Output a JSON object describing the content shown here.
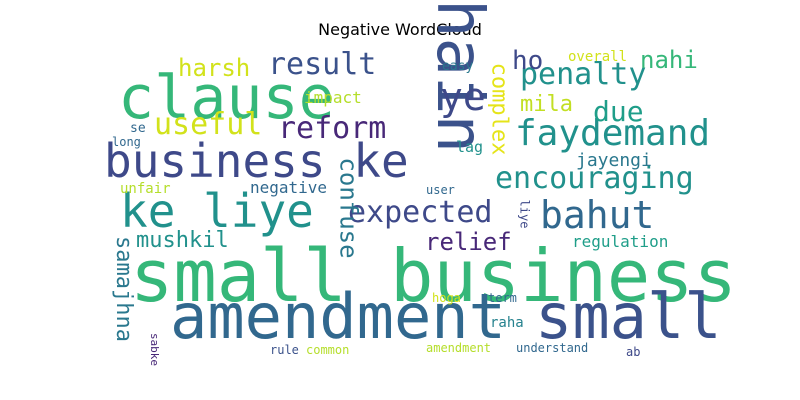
{
  "title": "Negative WordCloud",
  "words": [
    {
      "text": "small business",
      "color": "#35b779"
    },
    {
      "text": "amendment",
      "color": "#31688e"
    },
    {
      "text": "small",
      "color": "#3b528b"
    },
    {
      "text": "clause",
      "color": "#35b779"
    },
    {
      "text": "hain",
      "color": "#3b528b"
    },
    {
      "text": "business ke",
      "color": "#3e4989"
    },
    {
      "text": "ke liye",
      "color": "#21918c"
    },
    {
      "text": "faydemand",
      "color": "#21918c"
    },
    {
      "text": "bahut",
      "color": "#31688e"
    },
    {
      "text": "penalty",
      "color": "#21918c"
    },
    {
      "text": "result",
      "color": "#3b528b"
    },
    {
      "text": "reform",
      "color": "#482878"
    },
    {
      "text": "useful",
      "color": "#d2e21b"
    },
    {
      "text": "ye",
      "color": "#3e4989"
    },
    {
      "text": "expected",
      "color": "#3e4989"
    },
    {
      "text": "encouraging",
      "color": "#21918c"
    },
    {
      "text": "due",
      "color": "#1f9e89"
    },
    {
      "text": "harsh",
      "color": "#d2e21b"
    },
    {
      "text": "ho",
      "color": "#3e4989"
    },
    {
      "text": "nahi",
      "color": "#35b779"
    },
    {
      "text": "mila",
      "color": "#c2df23"
    },
    {
      "text": "complex",
      "color": "#e5e419"
    },
    {
      "text": "confuse",
      "color": "#2a788e"
    },
    {
      "text": "relief",
      "color": "#482878"
    },
    {
      "text": "mushkil",
      "color": "#21918c"
    },
    {
      "text": "samajhna",
      "color": "#2a788e"
    },
    {
      "text": "jayengi",
      "color": "#2a788e"
    },
    {
      "text": "negative",
      "color": "#31688e"
    },
    {
      "text": "regulation",
      "color": "#1f9e89"
    },
    {
      "text": "impact",
      "color": "#b5de2b"
    },
    {
      "text": "overall",
      "color": "#d2e21b"
    },
    {
      "text": "easy",
      "color": "#2a788e"
    },
    {
      "text": "se",
      "color": "#31688e"
    },
    {
      "text": "long",
      "color": "#31688e"
    },
    {
      "text": "lag",
      "color": "#21918c"
    },
    {
      "text": "unfair",
      "color": "#b5de2b"
    },
    {
      "text": "user",
      "color": "#31688e"
    },
    {
      "text": "liye",
      "color": "#3e4989"
    },
    {
      "text": "raha",
      "color": "#26828e"
    },
    {
      "text": "hoga",
      "color": "#d2e21b"
    },
    {
      "text": "term",
      "color": "#31688e"
    },
    {
      "text": "sabke",
      "color": "#482878"
    },
    {
      "text": "rule",
      "color": "#3b528b"
    },
    {
      "text": "common",
      "color": "#b5de2b"
    },
    {
      "text": "amendment",
      "color": "#b5de2b"
    },
    {
      "text": "understand",
      "color": "#31688e"
    },
    {
      "text": "ab",
      "color": "#3e4989"
    }
  ]
}
